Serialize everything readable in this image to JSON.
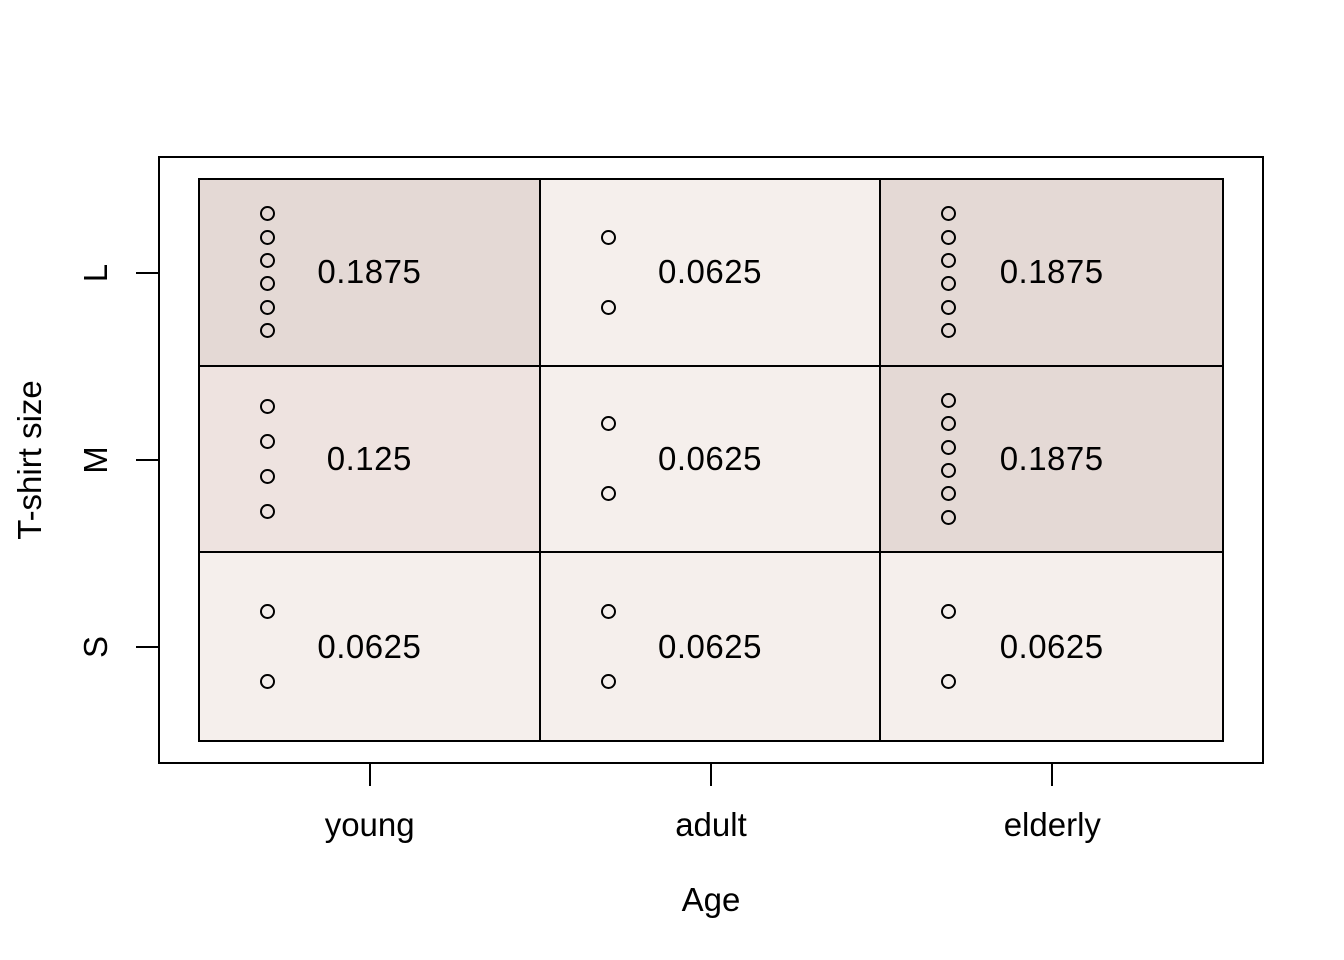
{
  "figure": {
    "background": "#ffffff",
    "line_color": "#000000"
  },
  "chart_data": {
    "type": "heatmap",
    "variant": "mosaic-probability-table-with-observation-dots",
    "title": "",
    "xlabel": "Age",
    "ylabel": "T-shirt size",
    "x_categories": [
      "young",
      "adult",
      "elderly"
    ],
    "y_categories": [
      "L",
      "M",
      "S"
    ],
    "legend": "none",
    "grid": "cell-borders-only",
    "fill_scale": {
      "0.0625": "#f5efec",
      "0.125": "#eee3e0",
      "0.1875": "#e4d9d5"
    },
    "cells": [
      {
        "row": "L",
        "col": "young",
        "probability": 0.1875,
        "label": "0.1875",
        "dot_count": 6,
        "fill": "#e4d9d5"
      },
      {
        "row": "L",
        "col": "adult",
        "probability": 0.0625,
        "label": "0.0625",
        "dot_count": 2,
        "fill": "#f5efec"
      },
      {
        "row": "L",
        "col": "elderly",
        "probability": 0.1875,
        "label": "0.1875",
        "dot_count": 6,
        "fill": "#e4d9d5"
      },
      {
        "row": "M",
        "col": "young",
        "probability": 0.125,
        "label": "0.125",
        "dot_count": 4,
        "fill": "#eee3e0"
      },
      {
        "row": "M",
        "col": "adult",
        "probability": 0.0625,
        "label": "0.0625",
        "dot_count": 2,
        "fill": "#f5efec"
      },
      {
        "row": "M",
        "col": "elderly",
        "probability": 0.1875,
        "label": "0.1875",
        "dot_count": 6,
        "fill": "#e4d9d5"
      },
      {
        "row": "S",
        "col": "young",
        "probability": 0.0625,
        "label": "0.0625",
        "dot_count": 2,
        "fill": "#f5efec"
      },
      {
        "row": "S",
        "col": "adult",
        "probability": 0.0625,
        "label": "0.0625",
        "dot_count": 2,
        "fill": "#f5efec"
      },
      {
        "row": "S",
        "col": "elderly",
        "probability": 0.0625,
        "label": "0.0625",
        "dot_count": 2,
        "fill": "#f5efec"
      }
    ]
  }
}
